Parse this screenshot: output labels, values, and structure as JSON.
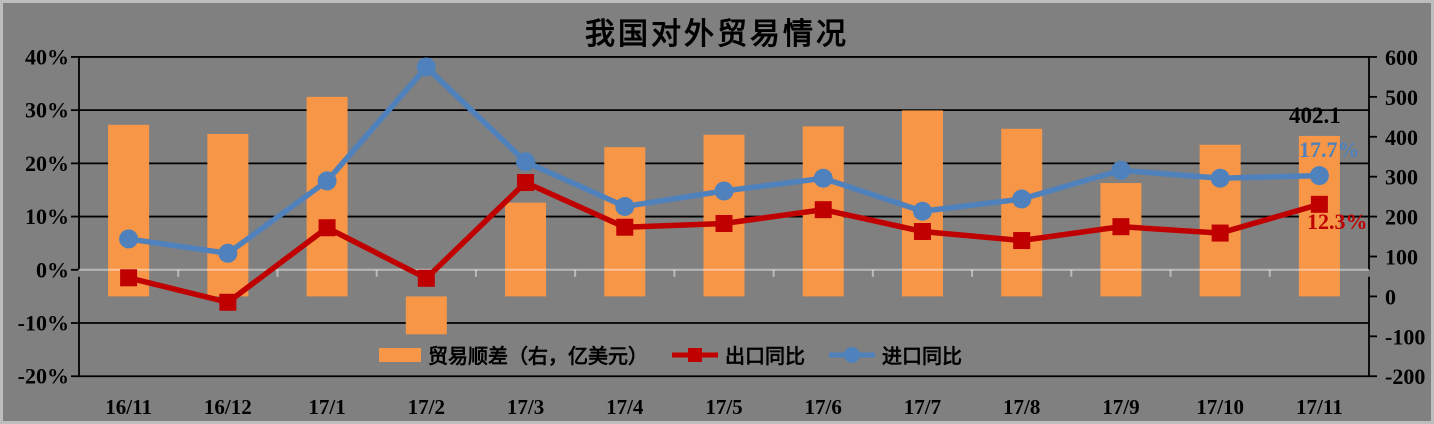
{
  "chart_data": {
    "type": "combo: bar + 2 lines, dual y-axis",
    "title": "我国对外贸易情况",
    "categories": [
      "16/11",
      "16/12",
      "17/1",
      "17/2",
      "17/3",
      "17/4",
      "17/5",
      "17/6",
      "17/7",
      "17/8",
      "17/9",
      "17/10",
      "17/11"
    ],
    "series": [
      {
        "name": "贸易顺差（右，亿美元）",
        "type": "bar",
        "axis": "right",
        "color": "#F79646",
        "values": [
          430,
          407,
          500,
          -95,
          235,
          374,
          405,
          426,
          466,
          420,
          284,
          380,
          402.1
        ]
      },
      {
        "name": "出口同比",
        "type": "line",
        "axis": "left",
        "marker": "square",
        "color": "#C00000",
        "values": [
          -1.5,
          -6.1,
          7.9,
          -1.6,
          16.4,
          8.0,
          8.7,
          11.3,
          7.2,
          5.5,
          8.1,
          6.9,
          12.3
        ]
      },
      {
        "name": "进口同比",
        "type": "line",
        "axis": "left",
        "marker": "circle",
        "color": "#4F81BD",
        "values": [
          5.8,
          3.1,
          16.7,
          38.1,
          20.3,
          11.9,
          14.8,
          17.2,
          11.0,
          13.3,
          18.7,
          17.2,
          17.7
        ]
      }
    ],
    "left_axis": {
      "unit": "percent",
      "min": -20,
      "max": 40,
      "tick_labels": [
        "40%",
        "30%",
        "20%",
        "10%",
        "0%",
        "-10%",
        "-20%"
      ],
      "tick_values": [
        40,
        30,
        20,
        10,
        0,
        -10,
        -20
      ]
    },
    "right_axis": {
      "unit": "亿美元",
      "min": -200,
      "max": 600,
      "tick_labels": [
        "600",
        "500",
        "400",
        "300",
        "200",
        "100",
        "0",
        "-100",
        "-200"
      ],
      "tick_values": [
        600,
        500,
        400,
        300,
        200,
        100,
        0,
        -100,
        -200
      ]
    },
    "annotations": {
      "surplus_last": {
        "text": "402.1",
        "color": "#000000"
      },
      "import_last": {
        "text": "17.7%",
        "color": "#4F81BD"
      },
      "export_last": {
        "text": "12.3%",
        "color": "#C00000"
      }
    },
    "legend_position": "bottom-center",
    "grid": true,
    "style": {
      "background": "#808080",
      "gridline_color": "#000000",
      "zero_axis_color": "#FFFFFF",
      "bar_color": "#F79646",
      "export_color": "#C00000",
      "import_color": "#4F81BD"
    }
  }
}
